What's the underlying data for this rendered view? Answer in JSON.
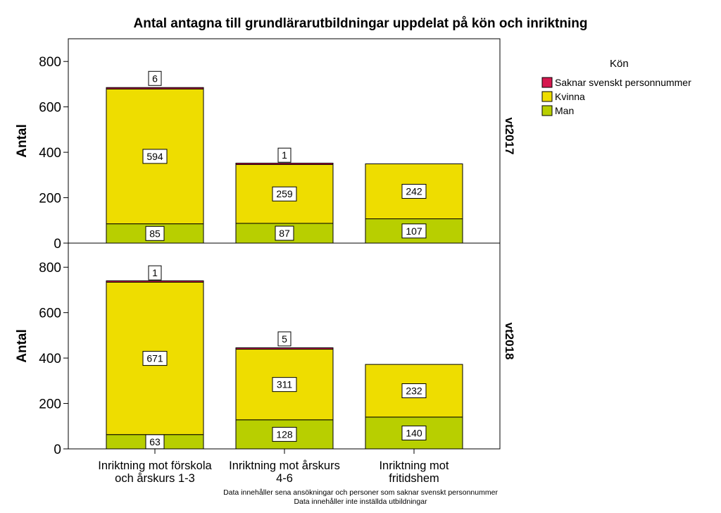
{
  "chart_data": {
    "type": "bar",
    "stacked": true,
    "title": "Antal antagna till grundlärarutbildningar uppdelat på kön och inriktning",
    "ylabel": "Antal",
    "ylim": [
      0,
      900
    ],
    "yticks": [
      0,
      200,
      400,
      600,
      800
    ],
    "categories": [
      [
        "Inriktning mot förskola",
        "och årskurs 1-3"
      ],
      [
        "Inriktning mot årskurs",
        "4-6"
      ],
      [
        "Inriktning mot",
        "fritidshem"
      ]
    ],
    "legend": {
      "title": "Kön",
      "position": "top-right",
      "entries": [
        "Saknar svenskt personnummer",
        "Kvinna",
        "Man"
      ]
    },
    "colors": {
      "Man": "#b8cf00",
      "Kvinna": "#eedd00",
      "Saknar svenskt personnummer": "#d6184f"
    },
    "panels": [
      {
        "label": "vt2017",
        "series": [
          {
            "name": "Man",
            "values": [
              85,
              87,
              107
            ]
          },
          {
            "name": "Kvinna",
            "values": [
              594,
              259,
              242
            ]
          },
          {
            "name": "Saknar svenskt personnummer",
            "values": [
              6,
              1,
              0
            ]
          }
        ]
      },
      {
        "label": "vt2018",
        "series": [
          {
            "name": "Man",
            "values": [
              63,
              128,
              140
            ]
          },
          {
            "name": "Kvinna",
            "values": [
              671,
              311,
              232
            ]
          },
          {
            "name": "Saknar svenskt personnummer",
            "values": [
              1,
              5,
              0
            ]
          }
        ]
      }
    ],
    "footnotes": [
      "Data innehåller sena ansökningar och personer som saknar svenskt personnummer",
      "Data innehåller inte inställda utbildningar"
    ]
  }
}
